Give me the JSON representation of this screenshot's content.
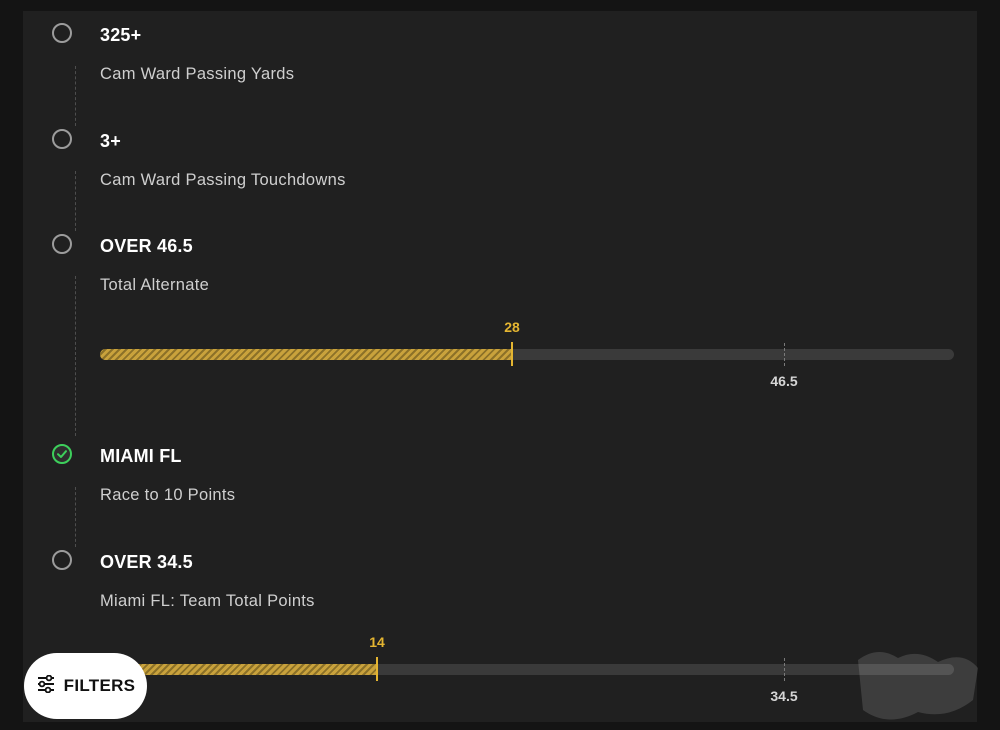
{
  "legs": [
    {
      "title": "325+",
      "subtitle": "Cam Ward Passing Yards",
      "status": "pending"
    },
    {
      "title": "3+",
      "subtitle": "Cam Ward Passing Touchdowns",
      "status": "pending"
    },
    {
      "title": "OVER 46.5",
      "subtitle": "Total Alternate",
      "status": "pending",
      "progress": {
        "current": "28",
        "line": "46.5",
        "current_fraction": 0.482,
        "line_fraction": 0.801
      }
    },
    {
      "title": "MIAMI FL",
      "subtitle": "Race to 10 Points",
      "status": "won"
    },
    {
      "title": "OVER 34.5",
      "subtitle": "Miami FL: Team Total Points",
      "status": "pending",
      "progress": {
        "current": "14",
        "line": "34.5",
        "current_fraction": 0.324,
        "line_fraction": 0.801
      }
    }
  ],
  "filters_button": {
    "label": "FILTERS",
    "icon": "sliders-icon"
  },
  "colors": {
    "accent": "#e4b531",
    "won": "#3dcf5b",
    "panel": "#202020"
  }
}
